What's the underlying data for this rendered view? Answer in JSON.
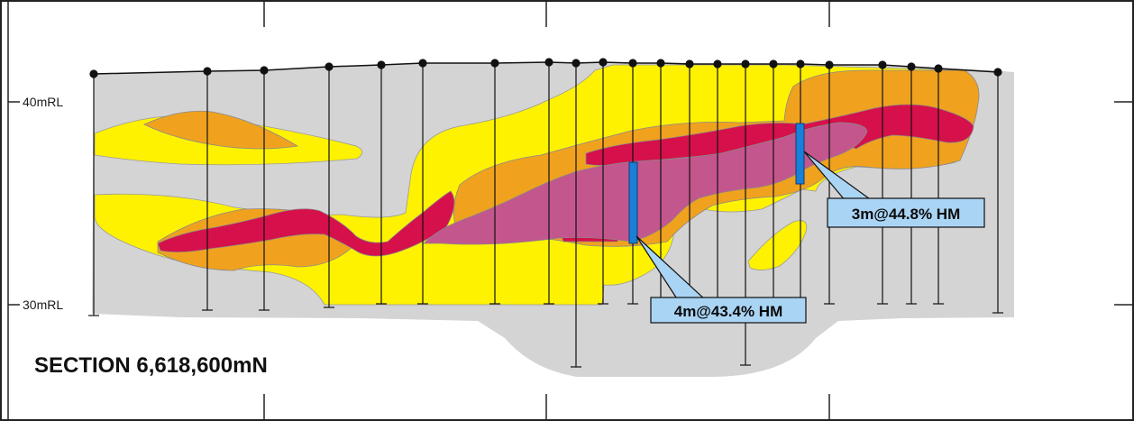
{
  "section_title": "SECTION 6,618,600mN",
  "rl_labels": {
    "upper": "40mRL",
    "lower": "30mRL"
  },
  "callouts": [
    {
      "label": "4m@43.4% HM"
    },
    {
      "label": "3m@44.8% HM"
    }
  ],
  "colors": {
    "background_waste": "#d4d4d4",
    "low_grade": "#fff200",
    "medium_grade": "#f0a21e",
    "high_grade": "#d6104a",
    "very_high_grade": "#c4568e",
    "intercept": "#1a7fd6",
    "callout_fill": "#aad4f4"
  }
}
